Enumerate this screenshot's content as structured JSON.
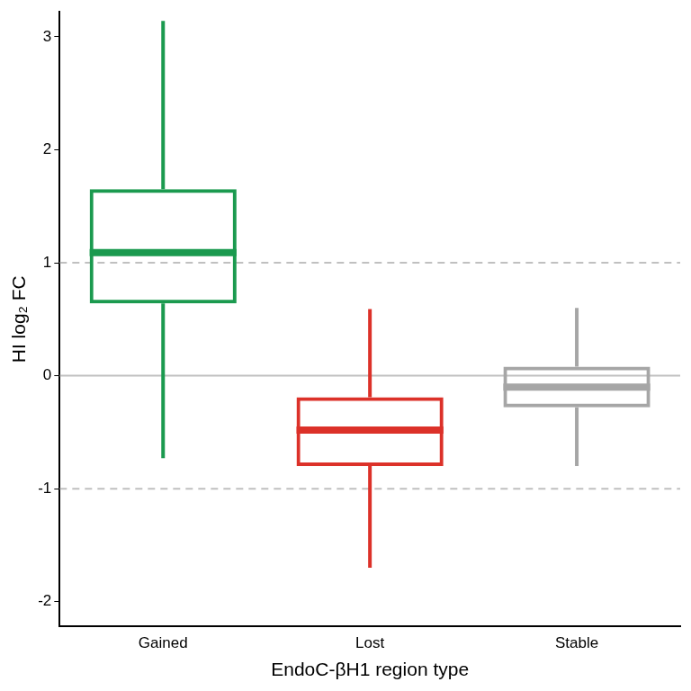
{
  "chart_data": {
    "type": "boxplot",
    "x_label": "EndoC-βH1 region type",
    "y_label": "HI log₂ FC",
    "categories": [
      "Gained",
      "Lost",
      "Stable"
    ],
    "stats": [
      {
        "min": -0.73,
        "q1": 0.64,
        "median": 1.09,
        "q3": 1.65,
        "max": 3.14
      },
      {
        "min": -1.7,
        "q1": -0.8,
        "median": -0.48,
        "q3": -0.19,
        "max": 0.59
      },
      {
        "min": -0.8,
        "q1": -0.28,
        "median": -0.1,
        "q3": 0.08,
        "max": 0.6
      }
    ],
    "colors": [
      "#1b9a4f",
      "#dc3129",
      "#a6a6a6"
    ],
    "ylim": [
      -2.22,
      3.22
    ],
    "yticks": [
      -2,
      -1,
      0,
      1,
      2,
      3
    ],
    "reference_lines": [
      {
        "value": 0,
        "line_style": "solid"
      },
      {
        "value": 1,
        "line_style": "dashed"
      },
      {
        "value": -1,
        "line_style": "dashed"
      }
    ],
    "grid": false
  }
}
